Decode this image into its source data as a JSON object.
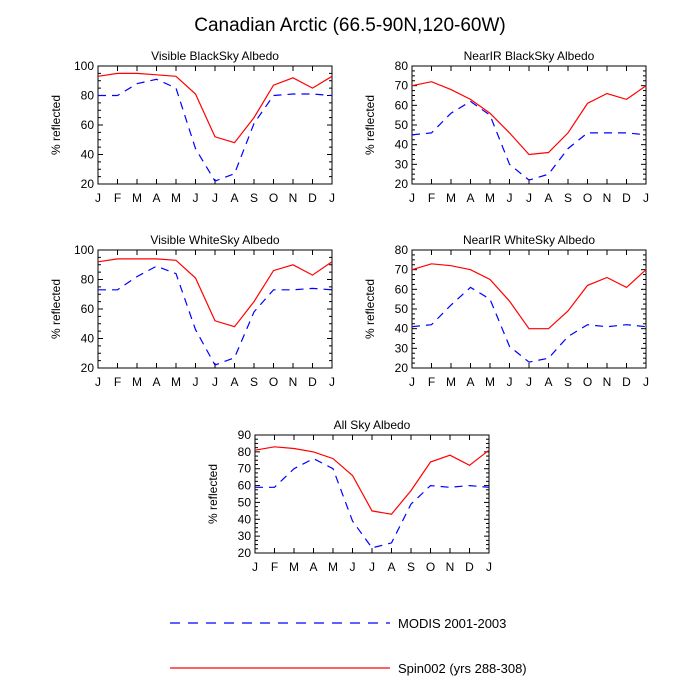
{
  "figure": {
    "title": "Canadian Arctic (66.5-90N,120-60W)"
  },
  "legend": {
    "items": [
      {
        "label": "MODIS 2001-2003",
        "color": "#0000ff",
        "dash": "dashed"
      },
      {
        "label": "Spin002 (yrs 288-308)",
        "color": "#ff0000",
        "dash": "solid"
      }
    ]
  },
  "chart_data": [
    {
      "type": "line",
      "title": "Visible BlackSky Albedo",
      "ylabel": "% reflected",
      "categories": [
        "J",
        "F",
        "M",
        "A",
        "M",
        "J",
        "J",
        "A",
        "S",
        "O",
        "N",
        "D",
        "J"
      ],
      "ylim": [
        20,
        100
      ],
      "yticks": [
        20,
        40,
        60,
        80,
        100
      ],
      "series": [
        {
          "name": "MODIS 2001-2003",
          "color": "#0000ff",
          "dash": "dashed",
          "values": [
            80,
            80,
            88,
            91,
            85,
            44,
            22,
            27,
            61,
            80,
            81,
            81,
            80
          ]
        },
        {
          "name": "Spin002 (yrs 288-308)",
          "color": "#ff0000",
          "dash": "solid",
          "values": [
            93,
            95,
            95,
            94,
            93,
            81,
            52,
            48,
            65,
            87,
            92,
            85,
            93
          ]
        }
      ]
    },
    {
      "type": "line",
      "title": "NearIR BlackSky Albedo",
      "ylabel": "% reflected",
      "categories": [
        "J",
        "F",
        "M",
        "A",
        "M",
        "J",
        "J",
        "A",
        "S",
        "O",
        "N",
        "D",
        "J"
      ],
      "ylim": [
        20,
        80
      ],
      "yticks": [
        20,
        30,
        40,
        50,
        60,
        70,
        80
      ],
      "series": [
        {
          "name": "MODIS 2001-2003",
          "color": "#0000ff",
          "dash": "dashed",
          "values": [
            45,
            46,
            56,
            62,
            55,
            30,
            22,
            25,
            38,
            46,
            46,
            46,
            45
          ]
        },
        {
          "name": "Spin002 (yrs 288-308)",
          "color": "#ff0000",
          "dash": "solid",
          "values": [
            70,
            72,
            68,
            63,
            56,
            46,
            35,
            36,
            46,
            61,
            66,
            63,
            70
          ]
        }
      ]
    },
    {
      "type": "line",
      "title": "Visible WhiteSky Albedo",
      "ylabel": "% reflected",
      "categories": [
        "J",
        "F",
        "M",
        "A",
        "M",
        "J",
        "J",
        "A",
        "S",
        "O",
        "N",
        "D",
        "J"
      ],
      "ylim": [
        20,
        100
      ],
      "yticks": [
        20,
        40,
        60,
        80,
        100
      ],
      "series": [
        {
          "name": "MODIS 2001-2003",
          "color": "#0000ff",
          "dash": "dashed",
          "values": [
            73,
            73,
            82,
            89,
            84,
            46,
            22,
            27,
            58,
            73,
            73,
            74,
            73
          ]
        },
        {
          "name": "Spin002 (yrs 288-308)",
          "color": "#ff0000",
          "dash": "solid",
          "values": [
            92,
            94,
            94,
            94,
            93,
            81,
            52,
            48,
            65,
            86,
            90,
            83,
            92
          ]
        }
      ]
    },
    {
      "type": "line",
      "title": "NearIR WhiteSky Albedo",
      "ylabel": "% reflected",
      "categories": [
        "J",
        "F",
        "M",
        "A",
        "M",
        "J",
        "J",
        "A",
        "S",
        "O",
        "N",
        "D",
        "J"
      ],
      "ylim": [
        20,
        80
      ],
      "yticks": [
        20,
        30,
        40,
        50,
        60,
        70,
        80
      ],
      "series": [
        {
          "name": "MODIS 2001-2003",
          "color": "#0000ff",
          "dash": "dashed",
          "values": [
            41,
            42,
            52,
            61,
            55,
            31,
            23,
            25,
            36,
            42,
            41,
            42,
            41
          ]
        },
        {
          "name": "Spin002 (yrs 288-308)",
          "color": "#ff0000",
          "dash": "solid",
          "values": [
            70,
            73,
            72,
            70,
            65,
            54,
            40,
            40,
            49,
            62,
            66,
            61,
            70
          ]
        }
      ]
    },
    {
      "type": "line",
      "title": "All Sky Albedo",
      "ylabel": "% reflected",
      "categories": [
        "J",
        "F",
        "M",
        "A",
        "M",
        "J",
        "J",
        "A",
        "S",
        "O",
        "N",
        "D",
        "J"
      ],
      "ylim": [
        20,
        90
      ],
      "yticks": [
        20,
        30,
        40,
        50,
        60,
        70,
        80,
        90
      ],
      "series": [
        {
          "name": "MODIS 2001-2003",
          "color": "#0000ff",
          "dash": "dashed",
          "values": [
            59,
            59,
            70,
            76,
            70,
            39,
            23,
            26,
            49,
            60,
            59,
            60,
            59
          ]
        },
        {
          "name": "Spin002 (yrs 288-308)",
          "color": "#ff0000",
          "dash": "solid",
          "values": [
            81,
            83,
            82,
            80,
            76,
            66,
            45,
            43,
            57,
            74,
            78,
            72,
            81
          ]
        }
      ]
    }
  ]
}
